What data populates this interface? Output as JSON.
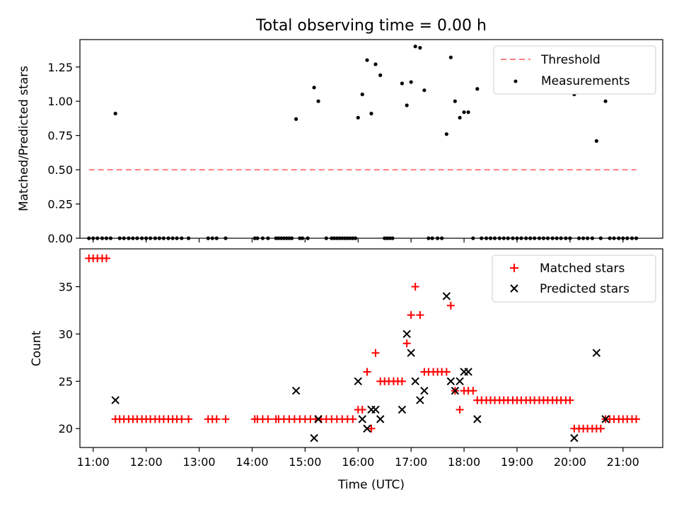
{
  "figure": {
    "title": "Total observing time = 0.00 h"
  },
  "chart_data": [
    {
      "type": "scatter",
      "ylabel": "Matched/Predicted stars",
      "xlim": [
        10.75,
        21.75
      ],
      "ylim": [
        0,
        1.45
      ],
      "yticks": [
        0.0,
        0.25,
        0.5,
        0.75,
        1.0,
        1.25
      ],
      "ytick_labels": [
        "0.00",
        "0.25",
        "0.50",
        "0.75",
        "1.00",
        "1.25"
      ],
      "xtick_labels": [],
      "grid": false,
      "legend": {
        "placement": "upper-right"
      },
      "series": [
        {
          "name": "Threshold",
          "style": "dashed-line",
          "color": "#ff7f7f",
          "x": [
            10.92,
            21.25
          ],
          "y": [
            0.5,
            0.5
          ]
        },
        {
          "name": "Measurements",
          "style": "dot",
          "color": "#000000",
          "points": [
            [
              10.92,
              0
            ],
            [
              11.0,
              0
            ],
            [
              11.08,
              0
            ],
            [
              11.17,
              0
            ],
            [
              11.25,
              0
            ],
            [
              11.33,
              0
            ],
            [
              11.42,
              0.91
            ],
            [
              11.5,
              0
            ],
            [
              11.58,
              0
            ],
            [
              11.67,
              0
            ],
            [
              11.75,
              0
            ],
            [
              11.83,
              0
            ],
            [
              11.92,
              0
            ],
            [
              12.0,
              0
            ],
            [
              12.08,
              0
            ],
            [
              12.17,
              0
            ],
            [
              12.25,
              0
            ],
            [
              12.33,
              0
            ],
            [
              12.42,
              0
            ],
            [
              12.5,
              0
            ],
            [
              12.58,
              0
            ],
            [
              12.67,
              0
            ],
            [
              12.8,
              0
            ],
            [
              13.17,
              0
            ],
            [
              13.25,
              0
            ],
            [
              13.33,
              0
            ],
            [
              13.5,
              0
            ],
            [
              14.05,
              0
            ],
            [
              14.1,
              0
            ],
            [
              14.2,
              0
            ],
            [
              14.3,
              0
            ],
            [
              14.45,
              0
            ],
            [
              14.5,
              0
            ],
            [
              14.55,
              0
            ],
            [
              14.6,
              0
            ],
            [
              14.65,
              0
            ],
            [
              14.7,
              0
            ],
            [
              14.75,
              0
            ],
            [
              14.83,
              0.87
            ],
            [
              14.9,
              0
            ],
            [
              14.95,
              0
            ],
            [
              15.05,
              0
            ],
            [
              15.17,
              1.1
            ],
            [
              15.25,
              1.0
            ],
            [
              15.4,
              0
            ],
            [
              15.5,
              0
            ],
            [
              15.55,
              0
            ],
            [
              15.6,
              0
            ],
            [
              15.65,
              0
            ],
            [
              15.7,
              0
            ],
            [
              15.75,
              0
            ],
            [
              15.8,
              0
            ],
            [
              15.85,
              0
            ],
            [
              15.9,
              0
            ],
            [
              15.95,
              0
            ],
            [
              16.0,
              0.88
            ],
            [
              16.08,
              1.05
            ],
            [
              16.17,
              1.3
            ],
            [
              16.25,
              0.91
            ],
            [
              16.33,
              1.27
            ],
            [
              16.42,
              1.19
            ],
            [
              16.5,
              0
            ],
            [
              16.55,
              0
            ],
            [
              16.6,
              0
            ],
            [
              16.65,
              0
            ],
            [
              16.83,
              1.13
            ],
            [
              16.92,
              0.97
            ],
            [
              17.0,
              1.14
            ],
            [
              17.08,
              1.4
            ],
            [
              17.17,
              1.39
            ],
            [
              17.25,
              1.08
            ],
            [
              17.33,
              0
            ],
            [
              17.4,
              0
            ],
            [
              17.5,
              0
            ],
            [
              17.58,
              0
            ],
            [
              17.67,
              0.76
            ],
            [
              17.75,
              1.32
            ],
            [
              17.83,
              1.0
            ],
            [
              17.92,
              0.88
            ],
            [
              18.0,
              0.92
            ],
            [
              18.08,
              0.92
            ],
            [
              18.17,
              0
            ],
            [
              18.25,
              1.09
            ],
            [
              18.33,
              0
            ],
            [
              18.42,
              0
            ],
            [
              18.5,
              0
            ],
            [
              18.58,
              0
            ],
            [
              18.67,
              0
            ],
            [
              18.75,
              0
            ],
            [
              18.83,
              0
            ],
            [
              18.92,
              0
            ],
            [
              19.0,
              0
            ],
            [
              19.08,
              0
            ],
            [
              19.17,
              0
            ],
            [
              19.25,
              0
            ],
            [
              19.33,
              0
            ],
            [
              19.42,
              0
            ],
            [
              19.5,
              0
            ],
            [
              19.58,
              0
            ],
            [
              19.67,
              0
            ],
            [
              19.75,
              0
            ],
            [
              19.83,
              0
            ],
            [
              19.92,
              0
            ],
            [
              20.0,
              0
            ],
            [
              20.08,
              1.05
            ],
            [
              20.17,
              0
            ],
            [
              20.25,
              0
            ],
            [
              20.33,
              0
            ],
            [
              20.42,
              0
            ],
            [
              20.5,
              0.71
            ],
            [
              20.58,
              0
            ],
            [
              20.67,
              1.0
            ],
            [
              20.75,
              0
            ],
            [
              20.83,
              0
            ],
            [
              20.92,
              0
            ],
            [
              21.0,
              0
            ],
            [
              21.08,
              0
            ],
            [
              21.17,
              0
            ],
            [
              21.25,
              0
            ]
          ]
        }
      ]
    },
    {
      "type": "scatter",
      "xlabel": "Time (UTC)",
      "ylabel": "Count",
      "xlim": [
        10.75,
        21.75
      ],
      "ylim": [
        18,
        39
      ],
      "xticks": [
        11,
        12,
        13,
        14,
        15,
        16,
        17,
        18,
        19,
        20,
        21
      ],
      "xtick_labels": [
        "11:00",
        "12:00",
        "13:00",
        "14:00",
        "15:00",
        "16:00",
        "17:00",
        "18:00",
        "19:00",
        "20:00",
        "21:00"
      ],
      "yticks": [
        20,
        25,
        30,
        35
      ],
      "ytick_labels": [
        "20",
        "25",
        "30",
        "35"
      ],
      "grid": false,
      "legend": {
        "placement": "upper-right"
      },
      "series": [
        {
          "name": "Matched stars",
          "style": "plus",
          "color": "#ff0000",
          "points": [
            [
              10.92,
              38
            ],
            [
              11.0,
              38
            ],
            [
              11.08,
              38
            ],
            [
              11.17,
              38
            ],
            [
              11.25,
              38
            ],
            [
              11.42,
              21
            ],
            [
              11.5,
              21
            ],
            [
              11.58,
              21
            ],
            [
              11.67,
              21
            ],
            [
              11.75,
              21
            ],
            [
              11.83,
              21
            ],
            [
              11.92,
              21
            ],
            [
              12.0,
              21
            ],
            [
              12.08,
              21
            ],
            [
              12.17,
              21
            ],
            [
              12.25,
              21
            ],
            [
              12.33,
              21
            ],
            [
              12.42,
              21
            ],
            [
              12.5,
              21
            ],
            [
              12.58,
              21
            ],
            [
              12.67,
              21
            ],
            [
              12.8,
              21
            ],
            [
              13.17,
              21
            ],
            [
              13.25,
              21
            ],
            [
              13.33,
              21
            ],
            [
              13.5,
              21
            ],
            [
              14.05,
              21
            ],
            [
              14.1,
              21
            ],
            [
              14.2,
              21
            ],
            [
              14.3,
              21
            ],
            [
              14.45,
              21
            ],
            [
              14.5,
              21
            ],
            [
              14.6,
              21
            ],
            [
              14.7,
              21
            ],
            [
              14.8,
              21
            ],
            [
              14.9,
              21
            ],
            [
              15.0,
              21
            ],
            [
              15.1,
              21
            ],
            [
              15.2,
              21
            ],
            [
              15.3,
              21
            ],
            [
              15.4,
              21
            ],
            [
              15.5,
              21
            ],
            [
              15.6,
              21
            ],
            [
              15.7,
              21
            ],
            [
              15.8,
              21
            ],
            [
              15.9,
              21
            ],
            [
              16.0,
              22
            ],
            [
              16.08,
              22
            ],
            [
              16.17,
              26
            ],
            [
              16.25,
              20
            ],
            [
              16.33,
              28
            ],
            [
              16.42,
              25
            ],
            [
              16.5,
              25
            ],
            [
              16.58,
              25
            ],
            [
              16.67,
              25
            ],
            [
              16.75,
              25
            ],
            [
              16.83,
              25
            ],
            [
              16.92,
              29
            ],
            [
              17.0,
              32
            ],
            [
              17.08,
              35
            ],
            [
              17.17,
              32
            ],
            [
              17.25,
              26
            ],
            [
              17.33,
              26
            ],
            [
              17.42,
              26
            ],
            [
              17.5,
              26
            ],
            [
              17.58,
              26
            ],
            [
              17.67,
              26
            ],
            [
              17.75,
              33
            ],
            [
              17.83,
              24
            ],
            [
              17.92,
              22
            ],
            [
              18.0,
              24
            ],
            [
              18.08,
              24
            ],
            [
              18.17,
              24
            ],
            [
              18.25,
              23
            ],
            [
              18.33,
              23
            ],
            [
              18.42,
              23
            ],
            [
              18.5,
              23
            ],
            [
              18.58,
              23
            ],
            [
              18.67,
              23
            ],
            [
              18.75,
              23
            ],
            [
              18.83,
              23
            ],
            [
              18.92,
              23
            ],
            [
              19.0,
              23
            ],
            [
              19.08,
              23
            ],
            [
              19.17,
              23
            ],
            [
              19.25,
              23
            ],
            [
              19.33,
              23
            ],
            [
              19.42,
              23
            ],
            [
              19.5,
              23
            ],
            [
              19.58,
              23
            ],
            [
              19.67,
              23
            ],
            [
              19.75,
              23
            ],
            [
              19.83,
              23
            ],
            [
              19.92,
              23
            ],
            [
              20.0,
              23
            ],
            [
              20.08,
              20
            ],
            [
              20.17,
              20
            ],
            [
              20.25,
              20
            ],
            [
              20.33,
              20
            ],
            [
              20.42,
              20
            ],
            [
              20.5,
              20
            ],
            [
              20.58,
              20
            ],
            [
              20.67,
              21
            ],
            [
              20.75,
              21
            ],
            [
              20.83,
              21
            ],
            [
              20.92,
              21
            ],
            [
              21.0,
              21
            ],
            [
              21.08,
              21
            ],
            [
              21.17,
              21
            ],
            [
              21.25,
              21
            ]
          ]
        },
        {
          "name": "Predicted stars",
          "style": "x",
          "color": "#000000",
          "points": [
            [
              11.42,
              23
            ],
            [
              14.83,
              24
            ],
            [
              15.17,
              19
            ],
            [
              15.25,
              21
            ],
            [
              16.0,
              25
            ],
            [
              16.08,
              21
            ],
            [
              16.17,
              20
            ],
            [
              16.25,
              22
            ],
            [
              16.33,
              22
            ],
            [
              16.42,
              21
            ],
            [
              16.83,
              22
            ],
            [
              16.92,
              30
            ],
            [
              17.0,
              28
            ],
            [
              17.08,
              25
            ],
            [
              17.17,
              23
            ],
            [
              17.25,
              24
            ],
            [
              17.67,
              34
            ],
            [
              17.75,
              25
            ],
            [
              17.83,
              24
            ],
            [
              17.92,
              25
            ],
            [
              18.0,
              26
            ],
            [
              18.08,
              26
            ],
            [
              18.25,
              21
            ],
            [
              20.08,
              19
            ],
            [
              20.5,
              28
            ],
            [
              20.67,
              21
            ]
          ]
        }
      ]
    }
  ]
}
